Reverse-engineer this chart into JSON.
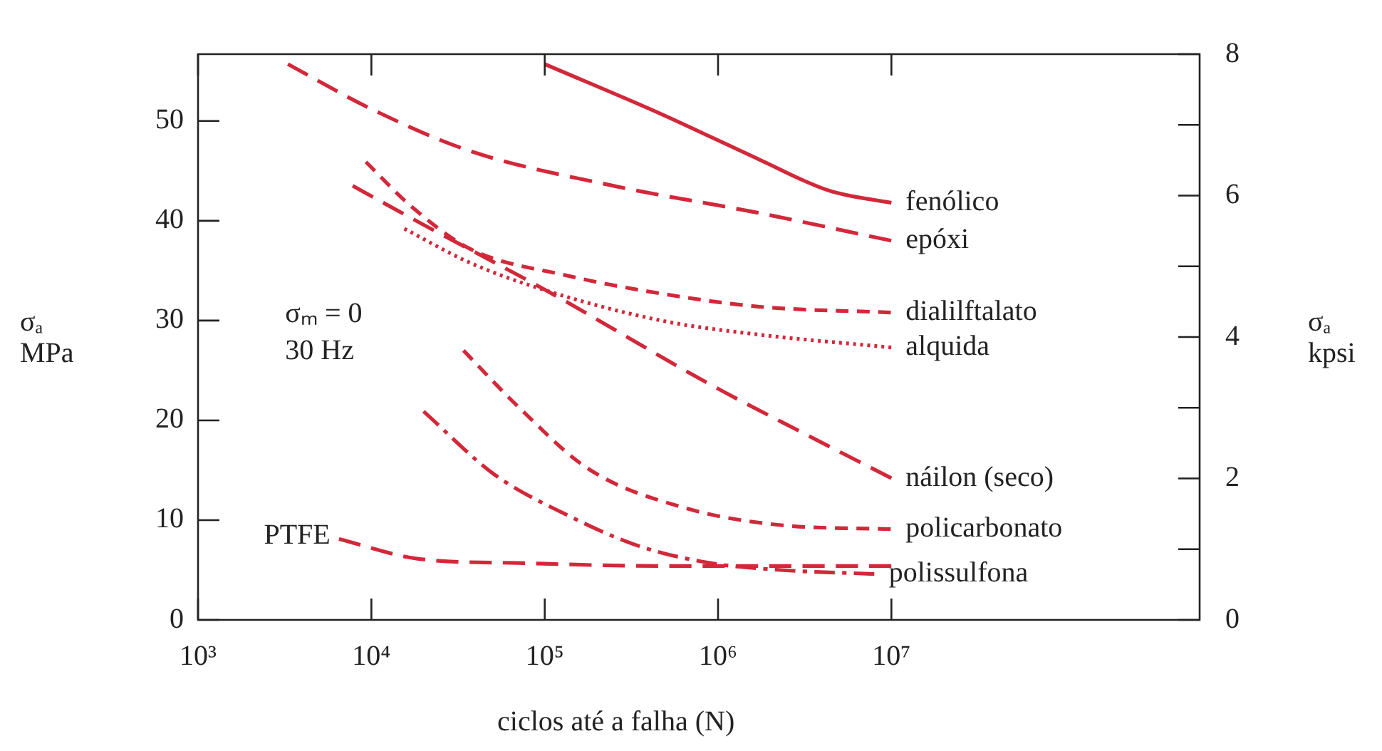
{
  "chart_data": {
    "type": "line",
    "xlabel": "ciclos até a falha (N)",
    "ylabel": "σₐ\nMPa",
    "y2label": "σₐ\nkpsi",
    "log": "x",
    "marker": "none",
    "annotations": [
      "σₘ = 0",
      "30 Hz"
    ],
    "xlim": [
      1000,
      600000000
    ],
    "xticks": [
      {
        "value": 1000,
        "label": "10³"
      },
      {
        "value": 10000,
        "label": "10⁴"
      },
      {
        "value": 100000,
        "label": "10⁵"
      },
      {
        "value": 1000000,
        "label": "10⁶"
      },
      {
        "value": 10000000,
        "label": "10⁷"
      }
    ],
    "ylim": [
      0,
      56.7
    ],
    "yticks": [
      0,
      10,
      20,
      30,
      40,
      50
    ],
    "y2lim": [
      0,
      8
    ],
    "y2ticks": [
      0,
      {
        "value": 1,
        "label": null
      },
      2,
      {
        "value": 3,
        "label": null
      },
      4,
      {
        "value": 5,
        "label": null
      },
      6,
      {
        "value": 7,
        "label": null
      },
      8
    ],
    "series": [
      {
        "name": "fenólico",
        "color": "#d2283a",
        "line_style": "solid",
        "x": [
          100000,
          470000,
          1700000,
          4400000,
          10000000
        ],
        "values": [
          55.7,
          50.7,
          46.2,
          43,
          41.8
        ]
      },
      {
        "name": "epóxi",
        "color": "#d2283a",
        "line_style": "dashed",
        "x": [
          3300,
          10000,
          37000,
          250000,
          1700000,
          10000000
        ],
        "values": [
          55.7,
          51.2,
          47,
          43.5,
          40.8,
          38
        ]
      },
      {
        "name": "dialilftalato",
        "color": "#d2283a",
        "line_style": "dashed",
        "x": [
          9300,
          16600,
          37000,
          135000,
          470000,
          1700000,
          10000000
        ],
        "values": [
          45.9,
          41.6,
          37.2,
          34.5,
          32.7,
          31.4,
          30.8
        ]
      },
      {
        "name": "alquida",
        "color": "#d2283a",
        "line_style": "dotted",
        "x": [
          15500,
          37000,
          98000,
          470000,
          1700000,
          10000000
        ],
        "values": [
          39.2,
          35.8,
          33.1,
          30,
          28.6,
          27.3
        ]
      },
      {
        "name": "náilon (seco)",
        "color": "#d2283a",
        "line_style": "dashed",
        "x": [
          7800,
          20000,
          100000,
          900000,
          3200000,
          10000000
        ],
        "values": [
          43.5,
          39.6,
          33.1,
          23.6,
          18.6,
          14.2
        ]
      },
      {
        "name": "policarbonato",
        "color": "#d2283a",
        "line_style": "dashed",
        "x": [
          34000,
          70000,
          180000,
          650000,
          2300000,
          10000000
        ],
        "values": [
          27,
          21.4,
          15.1,
          11.2,
          9.5,
          9.1
        ]
      },
      {
        "name": "polissulfona",
        "color": "#d2283a",
        "line_style": "dashed",
        "x": [
          20000,
          51000,
          135000,
          350000,
          900000,
          2300000,
          8000000
        ],
        "values": [
          20.9,
          14.6,
          10.5,
          7.4,
          5.7,
          5,
          4.6
        ]
      },
      {
        "name": "PTFE",
        "color": "#d2283a",
        "line_style": "dashed",
        "x": [
          6500,
          19000,
          70000,
          470000,
          10000000
        ],
        "values": [
          8.1,
          6.1,
          5.7,
          5.4,
          5.4
        ]
      }
    ]
  }
}
